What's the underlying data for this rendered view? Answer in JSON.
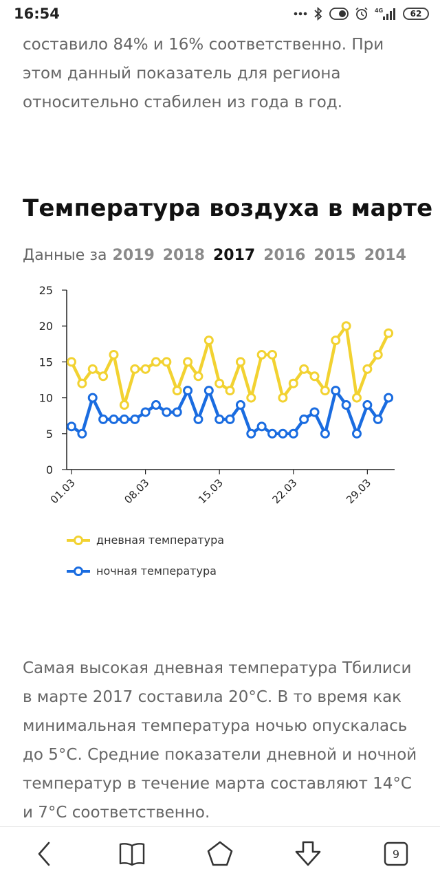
{
  "status_bar": {
    "time": "16:54",
    "network_label": "4G",
    "battery": "62"
  },
  "article": {
    "paragraph_top": "составило 84% и 16% соответственно. При этом данный показатель для региона относительно стабилен из года в год.",
    "section_title": "Температура воздуха в марте",
    "years_label": "Данные за",
    "years": [
      "2019",
      "2018",
      "2017",
      "2016",
      "2015",
      "2014"
    ],
    "active_year": "2017",
    "paragraph_bottom": "Самая высокая дневная температура Тбилиси в марте 2017 составила 20°C. В то время как минимальная температура ночью опускалась до 5°C. Средние показатели дневной и ночной температур в течение марта составляют 14°C и 7°C соответственно."
  },
  "chart_data": {
    "type": "line",
    "x": [
      "01.03",
      "02.03",
      "03.03",
      "04.03",
      "05.03",
      "06.03",
      "07.03",
      "08.03",
      "09.03",
      "10.03",
      "11.03",
      "12.03",
      "13.03",
      "14.03",
      "15.03",
      "16.03",
      "17.03",
      "18.03",
      "19.03",
      "20.03",
      "21.03",
      "22.03",
      "23.03",
      "24.03",
      "25.03",
      "26.03",
      "27.03",
      "28.03",
      "29.03",
      "30.03",
      "31.03"
    ],
    "x_tick_labels": [
      "01.03",
      "08.03",
      "15.03",
      "22.03",
      "29.03"
    ],
    "ylim": [
      0,
      25
    ],
    "y_ticks": [
      0,
      5,
      10,
      15,
      20,
      25
    ],
    "grid": false,
    "legend_position": "bottom-left",
    "series": [
      {
        "name": "дневная температура",
        "color": "#f2d231",
        "values": [
          15,
          12,
          14,
          13,
          16,
          9,
          14,
          14,
          15,
          15,
          11,
          15,
          13,
          18,
          12,
          11,
          15,
          10,
          16,
          16,
          10,
          12,
          14,
          13,
          11,
          18,
          20,
          10,
          14,
          16,
          19
        ]
      },
      {
        "name": "ночная температура",
        "color": "#1a6ce0",
        "values": [
          6,
          5,
          10,
          7,
          7,
          7,
          7,
          8,
          9,
          8,
          8,
          11,
          7,
          11,
          7,
          7,
          9,
          5,
          6,
          5,
          5,
          5,
          7,
          8,
          5,
          11,
          9,
          5,
          9,
          7,
          10
        ]
      }
    ]
  },
  "bottom_nav": {
    "tabs_count": "9",
    "icons": [
      "back-icon",
      "bookmarks-icon",
      "home-icon",
      "download-icon",
      "tabs-icon"
    ]
  }
}
